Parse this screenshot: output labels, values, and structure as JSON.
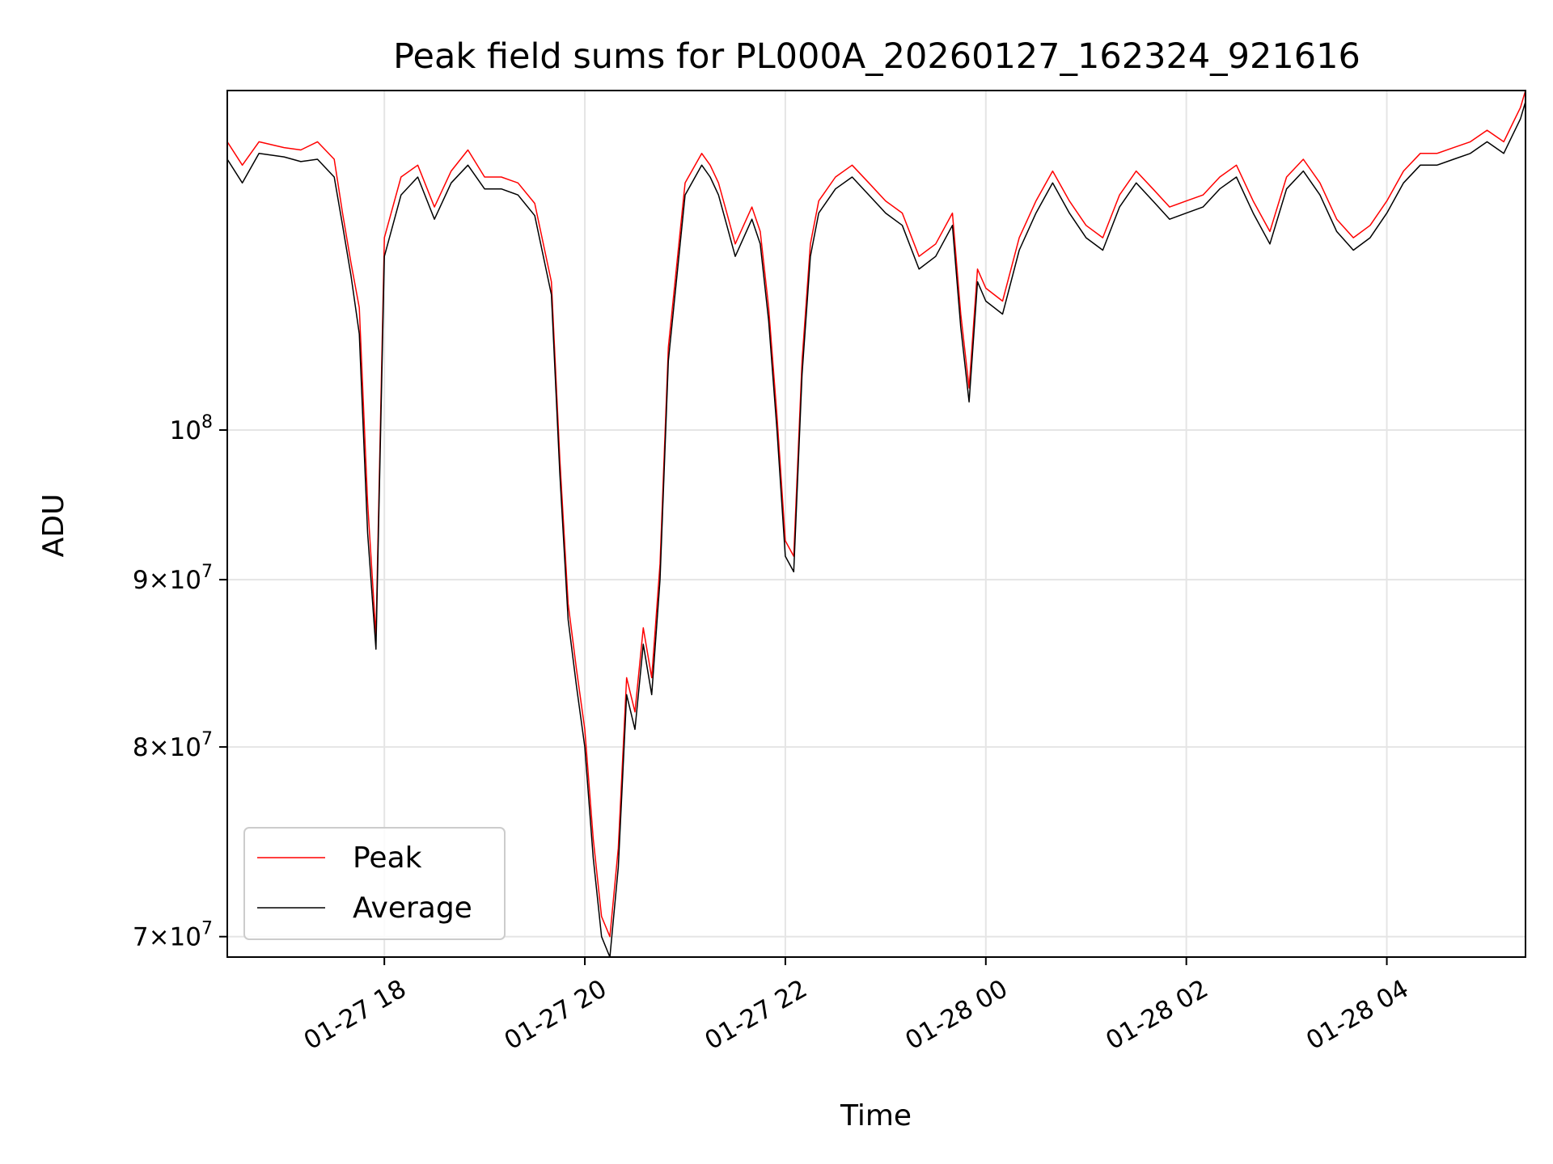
{
  "chart_data": {
    "type": "line",
    "title": "Peak field sums for PL000A_20260127_162324_921616",
    "xlabel": "Time",
    "ylabel": "ADU",
    "y_scale": "log",
    "ylim": [
      69000000,
      127000000
    ],
    "xlim": [
      "01-27 16:26",
      "01-28 05:23"
    ],
    "grid": true,
    "legend_position": "lower-left",
    "x_ticks": [
      {
        "value": "01-27 18:00",
        "label": "01-27 18"
      },
      {
        "value": "01-27 20:00",
        "label": "01-27 20"
      },
      {
        "value": "01-27 22:00",
        "label": "01-27 22"
      },
      {
        "value": "01-28 00:00",
        "label": "01-28 00"
      },
      {
        "value": "01-28 02:00",
        "label": "01-28 02"
      },
      {
        "value": "01-28 04:00",
        "label": "01-28 04"
      }
    ],
    "y_ticks": [
      {
        "value": 70000000,
        "mantissa": "7",
        "exponent": "7"
      },
      {
        "value": 80000000,
        "mantissa": "8",
        "exponent": "7"
      },
      {
        "value": 90000000,
        "mantissa": "9",
        "exponent": "7"
      },
      {
        "value": 100000000,
        "base": "10",
        "exponent": "8"
      }
    ],
    "series": [
      {
        "name": "Average",
        "color": "#000000",
        "x": [
          "01-27 16:26",
          "01-27 16:35",
          "01-27 16:45",
          "01-27 17:00",
          "01-27 17:10",
          "01-27 17:20",
          "01-27 17:30",
          "01-27 17:35",
          "01-27 17:40",
          "01-27 17:45",
          "01-27 17:50",
          "01-27 17:55",
          "01-27 18:00",
          "01-27 18:10",
          "01-27 18:20",
          "01-27 18:30",
          "01-27 18:40",
          "01-27 18:50",
          "01-27 19:00",
          "01-27 19:10",
          "01-27 19:20",
          "01-27 19:30",
          "01-27 19:40",
          "01-27 19:45",
          "01-27 19:50",
          "01-27 19:55",
          "01-27 20:00",
          "01-27 20:05",
          "01-27 20:10",
          "01-27 20:15",
          "01-27 20:20",
          "01-27 20:25",
          "01-27 20:30",
          "01-27 20:35",
          "01-27 20:40",
          "01-27 20:45",
          "01-27 20:50",
          "01-27 21:00",
          "01-27 21:10",
          "01-27 21:15",
          "01-27 21:20",
          "01-27 21:25",
          "01-27 21:30",
          "01-27 21:40",
          "01-27 21:45",
          "01-27 21:50",
          "01-27 21:55",
          "01-27 22:00",
          "01-27 22:05",
          "01-27 22:10",
          "01-27 22:15",
          "01-27 22:20",
          "01-27 22:30",
          "01-27 22:40",
          "01-27 22:50",
          "01-27 23:00",
          "01-27 23:10",
          "01-27 23:20",
          "01-27 23:30",
          "01-27 23:40",
          "01-27 23:45",
          "01-27 23:50",
          "01-27 23:55",
          "01-28 00:00",
          "01-28 00:10",
          "01-28 00:20",
          "01-28 00:30",
          "01-28 00:40",
          "01-28 00:50",
          "01-28 01:00",
          "01-28 01:10",
          "01-28 01:20",
          "01-28 01:30",
          "01-28 01:40",
          "01-28 01:50",
          "01-28 02:00",
          "01-28 02:10",
          "01-28 02:20",
          "01-28 02:30",
          "01-28 02:40",
          "01-28 02:50",
          "01-28 03:00",
          "01-28 03:10",
          "01-28 03:20",
          "01-28 03:30",
          "01-28 03:40",
          "01-28 03:50",
          "01-28 04:00",
          "01-28 04:10",
          "01-28 04:20",
          "01-28 04:30",
          "01-28 04:40",
          "01-28 04:50",
          "01-28 05:00",
          "01-28 05:10",
          "01-28 05:15",
          "01-28 05:20",
          "01-28 05:23"
        ],
        "values": [
          121000000,
          119000000,
          121500000,
          121200000,
          120800000,
          121000000,
          119500000,
          115500000,
          111500000,
          107000000,
          93000000,
          85700000,
          113000000,
          118000000,
          119500000,
          116000000,
          119000000,
          120500000,
          118500000,
          118500000,
          118000000,
          116300000,
          110000000,
          97000000,
          87500000,
          83500000,
          80000000,
          74000000,
          70000000,
          69000000,
          73500000,
          83000000,
          81000000,
          86000000,
          83000000,
          90000000,
          105000000,
          118000000,
          120500000,
          119500000,
          118000000,
          115500000,
          113000000,
          116000000,
          114000000,
          108000000,
          100000000,
          91500000,
          90500000,
          104000000,
          113000000,
          116500000,
          118500000,
          119500000,
          118000000,
          116500000,
          115500000,
          112000000,
          113000000,
          115500000,
          107500000,
          102000000,
          111000000,
          109500000,
          108500000,
          113500000,
          116500000,
          119000000,
          116500000,
          114500000,
          113500000,
          117000000,
          119000000,
          117500000,
          116000000,
          116500000,
          117000000,
          118500000,
          119500000,
          116500000,
          114000000,
          118500000,
          120000000,
          118000000,
          115000000,
          113500000,
          114500000,
          116500000,
          119000000,
          120500000,
          120500000,
          121000000,
          121500000,
          122500000,
          121500000,
          123000000,
          124500000,
          126000000
        ]
      },
      {
        "name": "Peak",
        "color": "#ff0000",
        "x": [
          "01-27 16:26",
          "01-27 16:35",
          "01-27 16:45",
          "01-27 17:00",
          "01-27 17:10",
          "01-27 17:20",
          "01-27 17:30",
          "01-27 17:35",
          "01-27 17:40",
          "01-27 17:45",
          "01-27 17:50",
          "01-27 17:55",
          "01-27 18:00",
          "01-27 18:10",
          "01-27 18:20",
          "01-27 18:30",
          "01-27 18:40",
          "01-27 18:50",
          "01-27 19:00",
          "01-27 19:10",
          "01-27 19:20",
          "01-27 19:30",
          "01-27 19:40",
          "01-27 19:45",
          "01-27 19:50",
          "01-27 19:55",
          "01-27 20:00",
          "01-27 20:05",
          "01-27 20:10",
          "01-27 20:15",
          "01-27 20:20",
          "01-27 20:25",
          "01-27 20:30",
          "01-27 20:35",
          "01-27 20:40",
          "01-27 20:45",
          "01-27 20:50",
          "01-27 21:00",
          "01-27 21:10",
          "01-27 21:15",
          "01-27 21:20",
          "01-27 21:25",
          "01-27 21:30",
          "01-27 21:40",
          "01-27 21:45",
          "01-27 21:50",
          "01-27 21:55",
          "01-27 22:00",
          "01-27 22:05",
          "01-27 22:10",
          "01-27 22:15",
          "01-27 22:20",
          "01-27 22:30",
          "01-27 22:40",
          "01-27 22:50",
          "01-27 23:00",
          "01-27 23:10",
          "01-27 23:20",
          "01-27 23:30",
          "01-27 23:40",
          "01-27 23:45",
          "01-27 23:50",
          "01-27 23:55",
          "01-28 00:00",
          "01-28 00:10",
          "01-28 00:20",
          "01-28 00:30",
          "01-28 00:40",
          "01-28 00:50",
          "01-28 01:00",
          "01-28 01:10",
          "01-28 01:20",
          "01-28 01:30",
          "01-28 01:40",
          "01-28 01:50",
          "01-28 02:00",
          "01-28 02:10",
          "01-28 02:20",
          "01-28 02:30",
          "01-28 02:40",
          "01-28 02:50",
          "01-28 03:00",
          "01-28 03:10",
          "01-28 03:20",
          "01-28 03:30",
          "01-28 03:40",
          "01-28 03:50",
          "01-28 04:00",
          "01-28 04:10",
          "01-28 04:20",
          "01-28 04:30",
          "01-28 04:40",
          "01-28 04:50",
          "01-28 05:00",
          "01-28 05:10",
          "01-28 05:15",
          "01-28 05:20",
          "01-28 05:23"
        ],
        "values": [
          122500000,
          120500000,
          122500000,
          122000000,
          121800000,
          122500000,
          121000000,
          116500000,
          112500000,
          109000000,
          95000000,
          86500000,
          114500000,
          119500000,
          120500000,
          117000000,
          120000000,
          121800000,
          119500000,
          119500000,
          119000000,
          117300000,
          111000000,
          98000000,
          88500000,
          84500000,
          81000000,
          75000000,
          71000000,
          70000000,
          74500000,
          84000000,
          82000000,
          87000000,
          84000000,
          91000000,
          106000000,
          119000000,
          121500000,
          120500000,
          119000000,
          116500000,
          114000000,
          117000000,
          115000000,
          109000000,
          101000000,
          92500000,
          91500000,
          105000000,
          114000000,
          117500000,
          119500000,
          120500000,
          119000000,
          117500000,
          116500000,
          113000000,
          114000000,
          116500000,
          108500000,
          103000000,
          112000000,
          110500000,
          109500000,
          114500000,
          117500000,
          120000000,
          117500000,
          115500000,
          114500000,
          118000000,
          120000000,
          118500000,
          117000000,
          117500000,
          118000000,
          119500000,
          120500000,
          117500000,
          115000000,
          119500000,
          121000000,
          119000000,
          116000000,
          114500000,
          115500000,
          117500000,
          120000000,
          121500000,
          121500000,
          122000000,
          122500000,
          123500000,
          122500000,
          124000000,
          125500000,
          127000000
        ]
      }
    ],
    "legend": [
      {
        "name": "Peak",
        "color": "#ff0000"
      },
      {
        "name": "Average",
        "color": "#000000"
      }
    ]
  }
}
